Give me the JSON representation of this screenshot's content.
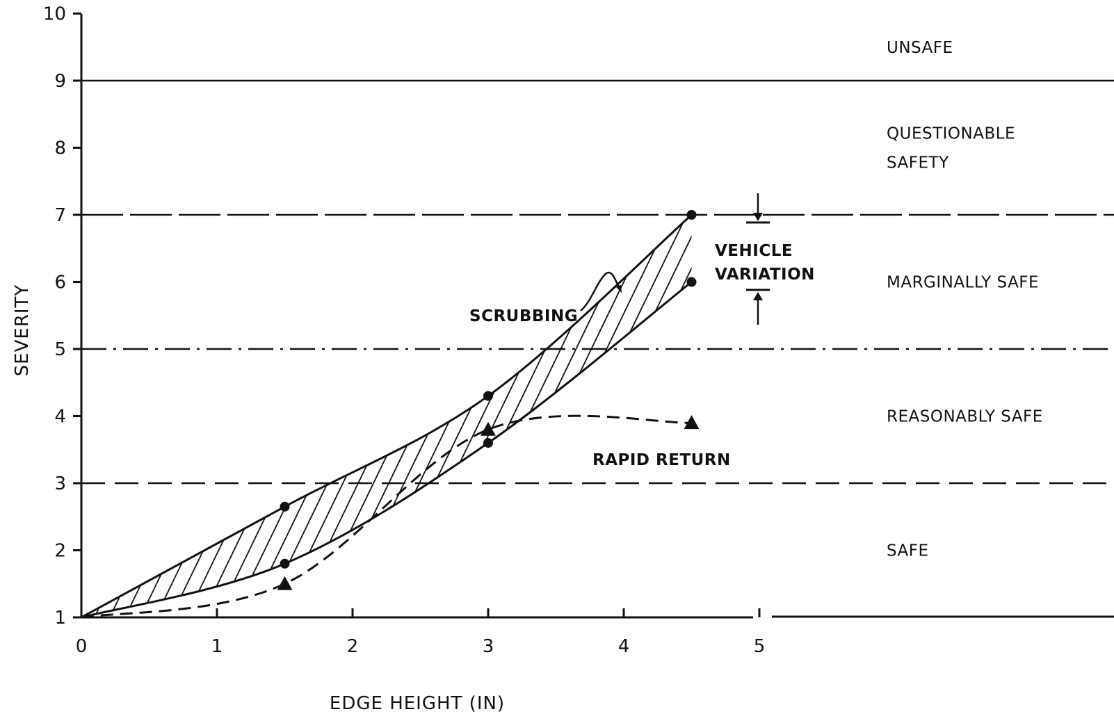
{
  "chart_data": {
    "type": "line",
    "title": "",
    "xlabel": "EDGE HEIGHT (IN)",
    "ylabel": "SEVERITY",
    "xlim": [
      0,
      5
    ],
    "ylim": [
      1,
      10
    ],
    "x_ticks": [
      "0",
      "1",
      "2",
      "3",
      "4",
      "5"
    ],
    "y_ticks": [
      "1",
      "2",
      "3",
      "4",
      "5",
      "6",
      "7",
      "8",
      "9",
      "10"
    ],
    "grid": false,
    "zones": [
      {
        "label_lines": [
          "UNSAFE"
        ],
        "range": [
          9,
          10
        ]
      },
      {
        "label_lines": [
          "QUESTIONABLE",
          "SAFETY"
        ],
        "range": [
          7,
          9
        ]
      },
      {
        "label_lines": [
          "MARGINALLY  SAFE"
        ],
        "range": [
          5,
          7
        ]
      },
      {
        "label_lines": [
          "REASONABLY  SAFE"
        ],
        "range": [
          3,
          5
        ]
      },
      {
        "label_lines": [
          "SAFE"
        ],
        "range": [
          1,
          3
        ]
      }
    ],
    "boundaries": [
      {
        "y": 9,
        "style": "solid"
      },
      {
        "y": 7,
        "style": "long-dash"
      },
      {
        "y": 5,
        "style": "dash-dot"
      },
      {
        "y": 3,
        "style": "dashed"
      }
    ],
    "series": [
      {
        "name": "SCRUBBING",
        "role": "upper-envelope",
        "marker": "circle",
        "style": "solid",
        "x": [
          0,
          1.5,
          3,
          4.5
        ],
        "y": [
          1,
          2.65,
          4.3,
          7
        ]
      },
      {
        "name": "SCRUBBING",
        "role": "lower-envelope",
        "marker": "circle",
        "style": "solid",
        "x": [
          0,
          1.5,
          3,
          4.5
        ],
        "y": [
          1,
          1.8,
          3.6,
          6
        ]
      },
      {
        "name": "RAPID RETURN",
        "role": "single",
        "marker": "triangle",
        "style": "dashed",
        "x": [
          0,
          1.5,
          3,
          4.5
        ],
        "y": [
          1,
          1.5,
          3.8,
          3.9
        ]
      }
    ],
    "annotations": {
      "scrubbing": "SCRUBBING",
      "rapid_return": "RAPID RETURN",
      "vehicle_variation_line1": "VEHICLE",
      "vehicle_variation_line2": "VARIATION"
    }
  }
}
